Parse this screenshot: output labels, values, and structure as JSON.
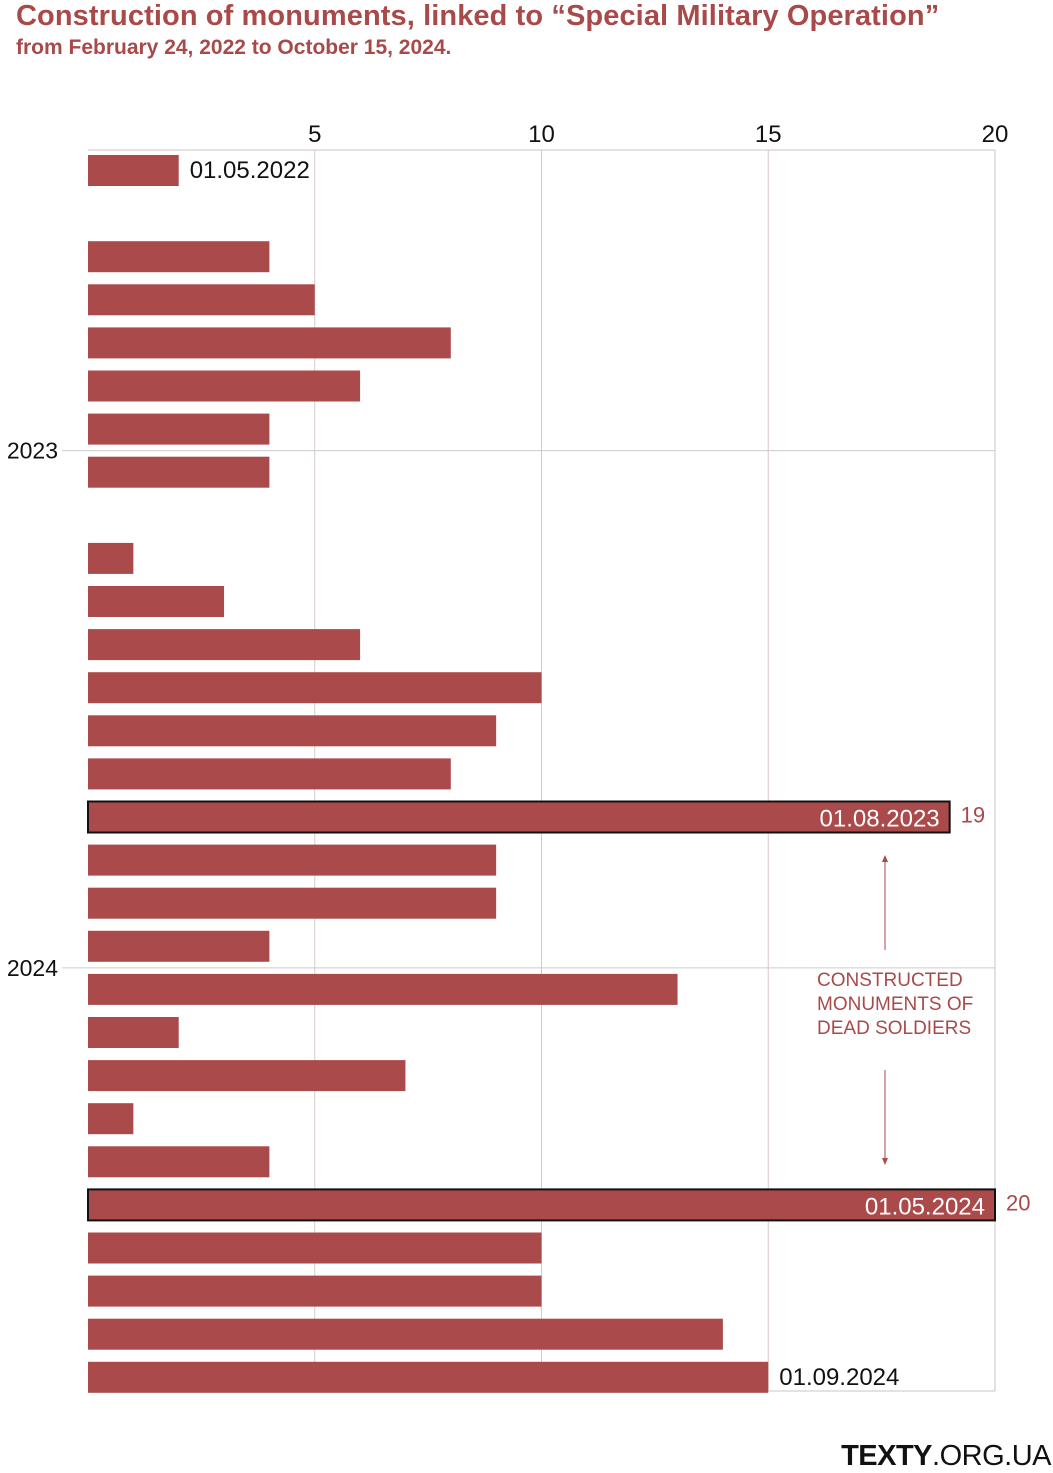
{
  "title": "Construction of monuments, linked to “Special Military Operation”",
  "subtitle": "from February 24, 2022 to October 15, 2024.",
  "brand": {
    "name": "TEXTY",
    "domain": ".ORG.UA"
  },
  "colors": {
    "bar": "#ab4a4a",
    "title": "#a94a4a",
    "grid": "#d8c8c8",
    "annotation": "#a94a4a"
  },
  "chart_data": {
    "type": "bar",
    "orientation": "horizontal",
    "xlim": [
      0,
      20
    ],
    "xticks": [
      "5",
      "10",
      "15",
      "20"
    ],
    "year_labels": [
      {
        "label": "2023",
        "after_row": 7
      },
      {
        "label": "2024",
        "after_row": 19
      }
    ],
    "values": [
      2,
      null,
      4,
      5,
      8,
      6,
      4,
      4,
      null,
      1,
      3,
      6,
      10,
      9,
      8,
      19,
      9,
      9,
      4,
      13,
      2,
      7,
      1,
      4,
      20,
      10,
      10,
      14,
      15
    ],
    "bar_labels": [
      {
        "row": 0,
        "text": "01.05.2022",
        "position": "outside"
      },
      {
        "row": 15,
        "text": "01.08.2023",
        "position": "inside",
        "value_label": "19",
        "highlight": true
      },
      {
        "row": 24,
        "text": "01.05.2024",
        "position": "inside",
        "value_label": "20",
        "highlight": true
      },
      {
        "row": 28,
        "text": "01.09.2024",
        "position": "outside"
      }
    ],
    "annotation": [
      "CONSTRUCTED",
      "MONUMENTS OF",
      "DEAD SOLDIERS"
    ]
  }
}
